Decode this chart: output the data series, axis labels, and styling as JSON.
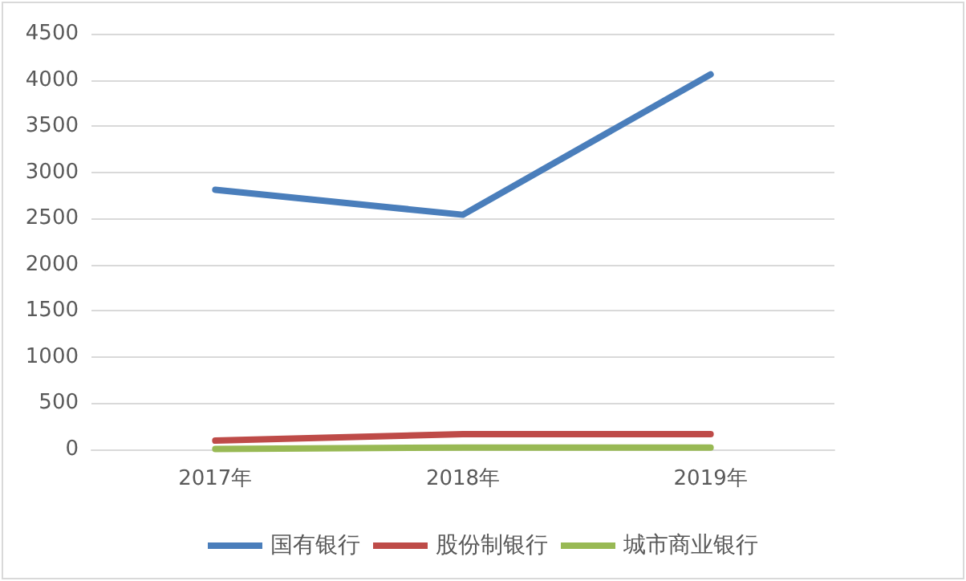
{
  "chart_data": {
    "type": "line",
    "categories": [
      "2017年",
      "2018年",
      "2019年"
    ],
    "series": [
      {
        "name": "国有银行",
        "color": "#4a7ebb",
        "values": [
          2810,
          2540,
          4060
        ]
      },
      {
        "name": "股份制银行",
        "color": "#be4b48",
        "values": [
          95,
          165,
          165
        ]
      },
      {
        "name": "城市商业银行",
        "color": "#98b954",
        "values": [
          5,
          20,
          20
        ]
      }
    ],
    "ylim": [
      0,
      4500
    ],
    "yticks": [
      0,
      500,
      1000,
      1500,
      2000,
      2500,
      3000,
      3500,
      4000,
      4500
    ],
    "grid": "y",
    "legend": "bottom",
    "marker": "none",
    "line_style": "solid"
  }
}
